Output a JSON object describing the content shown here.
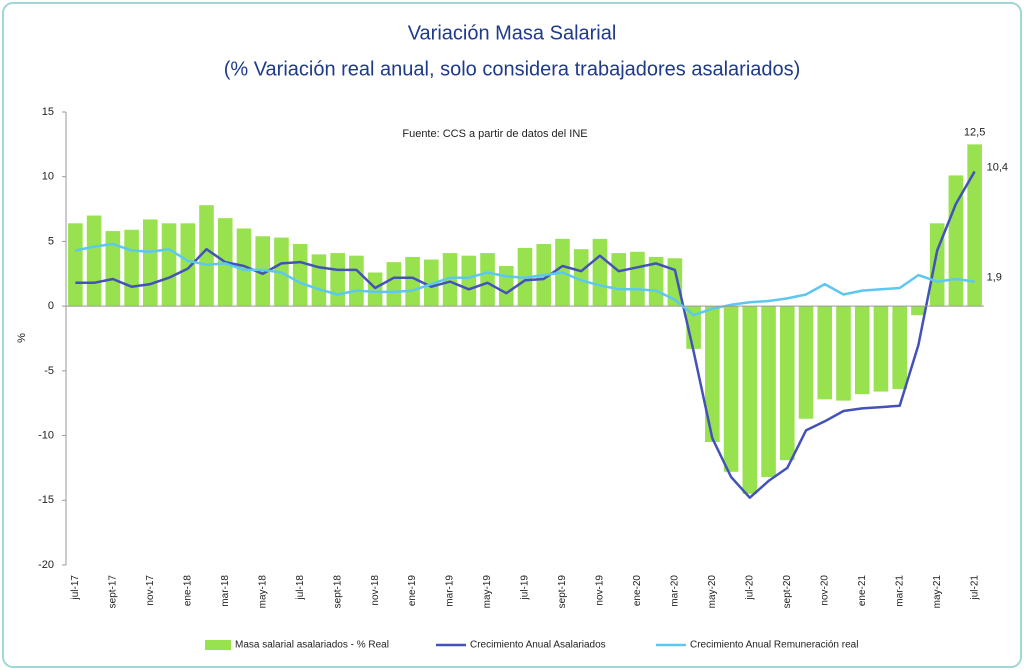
{
  "chart_data": {
    "type": "bar_line",
    "title": "Variación Masa Salarial",
    "subtitle": "(% Variación real anual, solo considera trabajadores asalariados)",
    "annotation": "Fuente: CCS a partir de datos del INE",
    "ylabel": "%",
    "categories": [
      "jul-17",
      null,
      "sept-17",
      null,
      "nov-17",
      null,
      "ene-18",
      null,
      "mar-18",
      null,
      "may-18",
      null,
      "jul-18",
      null,
      "sept-18",
      null,
      "nov-18",
      null,
      "ene-19",
      null,
      "mar-19",
      null,
      "may-19",
      null,
      "jul-19",
      null,
      "sept-19",
      null,
      "nov-19",
      null,
      "ene-20",
      null,
      "mar-20",
      null,
      "may-20",
      null,
      "jul-20",
      null,
      "sept-20",
      null,
      "nov-20",
      null,
      "ene-21",
      null,
      "mar-21",
      null,
      "may-21",
      null,
      "jul-21"
    ],
    "series": [
      {
        "name": "Masa salarial asalariados - % Real",
        "type": "bar",
        "color": "#99e24f",
        "values": [
          6.4,
          7.0,
          5.8,
          5.9,
          6.7,
          6.4,
          6.4,
          7.8,
          6.8,
          6.0,
          5.4,
          5.3,
          4.8,
          4.0,
          4.1,
          3.9,
          2.6,
          3.4,
          3.8,
          3.6,
          4.1,
          3.9,
          4.1,
          3.1,
          4.5,
          4.8,
          5.2,
          4.4,
          5.2,
          4.1,
          4.2,
          3.8,
          3.7,
          -3.3,
          -10.5,
          -12.8,
          -14.5,
          -13.2,
          -11.9,
          -8.7,
          -7.2,
          -7.3,
          -6.8,
          -6.6,
          -6.4,
          -0.7,
          6.4,
          10.1,
          12.5
        ],
        "value_labels": [
          null,
          null,
          null,
          null,
          null,
          null,
          null,
          null,
          null,
          null,
          null,
          null,
          null,
          null,
          null,
          null,
          null,
          null,
          null,
          null,
          null,
          null,
          null,
          null,
          null,
          null,
          null,
          null,
          null,
          null,
          null,
          null,
          null,
          null,
          null,
          null,
          null,
          null,
          null,
          null,
          null,
          null,
          null,
          null,
          null,
          null,
          null,
          null,
          "12,5"
        ]
      },
      {
        "name": "Crecimiento Anual Asalariados",
        "type": "line",
        "color": "#4352b8",
        "values": [
          1.8,
          1.8,
          2.1,
          1.5,
          1.7,
          2.2,
          2.9,
          4.4,
          3.4,
          3.1,
          2.5,
          3.3,
          3.4,
          3.0,
          2.8,
          2.8,
          1.4,
          2.2,
          2.2,
          1.5,
          1.9,
          1.3,
          1.8,
          1.0,
          2.0,
          2.1,
          3.1,
          2.7,
          3.9,
          2.7,
          3.0,
          3.3,
          2.8,
          -3.5,
          -10.2,
          -13.2,
          -14.8,
          -13.5,
          -12.5,
          -9.6,
          -8.9,
          -8.1,
          -7.9,
          -7.8,
          -7.7,
          -3.0,
          4.3,
          7.9,
          10.4
        ],
        "value_labels": [
          null,
          null,
          null,
          null,
          null,
          null,
          null,
          null,
          null,
          null,
          null,
          null,
          null,
          null,
          null,
          null,
          null,
          null,
          null,
          null,
          null,
          null,
          null,
          null,
          null,
          null,
          null,
          null,
          null,
          null,
          null,
          null,
          null,
          null,
          null,
          null,
          null,
          null,
          null,
          null,
          null,
          null,
          null,
          null,
          null,
          null,
          null,
          null,
          "10,4"
        ]
      },
      {
        "name": "Crecimiento Anual Remuneración real",
        "type": "line",
        "color": "#5cc8ef",
        "values": [
          4.3,
          4.6,
          4.8,
          4.3,
          4.2,
          4.4,
          3.5,
          3.2,
          3.3,
          2.8,
          2.8,
          2.6,
          1.8,
          1.3,
          0.9,
          1.2,
          1.1,
          1.1,
          1.2,
          1.7,
          2.2,
          2.2,
          2.6,
          2.3,
          2.2,
          2.4,
          2.6,
          2.0,
          1.6,
          1.3,
          1.3,
          1.2,
          0.5,
          -0.7,
          -0.2,
          0.1,
          0.3,
          0.4,
          0.6,
          0.9,
          1.7,
          0.9,
          1.2,
          1.3,
          1.4,
          2.4,
          1.9,
          2.1,
          1.9
        ],
        "value_labels": [
          null,
          null,
          null,
          null,
          null,
          null,
          null,
          null,
          null,
          null,
          null,
          null,
          null,
          null,
          null,
          null,
          null,
          null,
          null,
          null,
          null,
          null,
          null,
          null,
          null,
          null,
          null,
          null,
          null,
          null,
          null,
          null,
          null,
          null,
          null,
          null,
          null,
          null,
          null,
          null,
          null,
          null,
          null,
          null,
          null,
          null,
          null,
          null,
          "1,9"
        ]
      }
    ],
    "ylim": [
      -20,
      15
    ],
    "yticks": [
      15,
      10,
      5,
      0,
      -5,
      -10,
      -15,
      -20
    ],
    "grid": false,
    "legend": "bottom"
  }
}
